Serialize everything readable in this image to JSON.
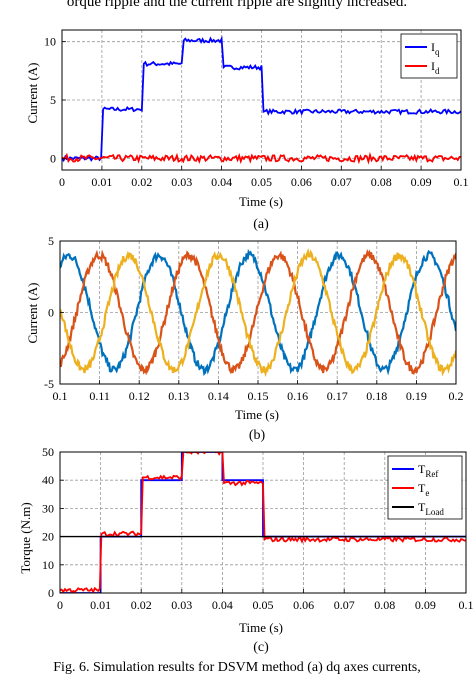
{
  "page_text": {
    "top": "orque ripple and the current ripple are slightly increased.",
    "caption": "Fig. 6.   Simulation results for DSVM method (a) dq axes currents,"
  },
  "chart_data": [
    {
      "type": "line",
      "panel_label": "(a)",
      "xlabel": "Time (s)",
      "ylabel": "Current (A)",
      "xlim": [
        0,
        0.1
      ],
      "ylim": [
        -1,
        11
      ],
      "xticks": [
        "0",
        "0.01",
        "0.02",
        "0.03",
        "0.04",
        "0.05",
        "0.06",
        "0.07",
        "0.08",
        "0.09",
        "0.1"
      ],
      "yticks": [
        "0",
        "5",
        "10"
      ],
      "grid": true,
      "legend": {
        "placement": "top-right",
        "entries": [
          "I_q",
          "I_d"
        ]
      },
      "series": [
        {
          "name": "I_q",
          "color": "#0000ff",
          "x": [
            0,
            0.0098,
            0.0103,
            0.02,
            0.0205,
            0.03,
            0.0305,
            0.04,
            0.0405,
            0.05,
            0.0505,
            0.1
          ],
          "values": [
            0,
            0,
            4.2,
            4.2,
            8.1,
            8.1,
            10.1,
            10.1,
            7.8,
            7.8,
            4.0,
            4.0
          ]
        },
        {
          "name": "I_d",
          "color": "#ff0000",
          "x": [
            0,
            0.1
          ],
          "values": [
            0,
            0
          ]
        }
      ]
    },
    {
      "type": "line",
      "panel_label": "(b)",
      "xlabel": "Time (s)",
      "ylabel": "Current (A)",
      "xlim": [
        0.1,
        0.2
      ],
      "ylim": [
        -5,
        5
      ],
      "xticks": [
        "0.1",
        "0.11",
        "0.12",
        "0.13",
        "0.14",
        "0.15",
        "0.16",
        "0.17",
        "0.18",
        "0.19",
        "0.2"
      ],
      "yticks": [
        "-5",
        "0",
        "5"
      ],
      "grid": true,
      "series": [
        {
          "color": "#0072bd",
          "amplitude": 4,
          "frequency_hz": 44,
          "phase_deg": -90
        },
        {
          "color": "#d95319",
          "amplitude": 4,
          "frequency_hz": 44,
          "phase_deg": 150
        },
        {
          "color": "#edb120",
          "amplitude": 4,
          "frequency_hz": 44,
          "phase_deg": 30
        }
      ]
    },
    {
      "type": "line",
      "panel_label": "(c)",
      "xlabel": "Time (s)",
      "ylabel": "Torque (N.m)",
      "xlim": [
        0,
        0.1
      ],
      "ylim": [
        0,
        50
      ],
      "xticks": [
        "0",
        "0.01",
        "0.02",
        "0.03",
        "0.04",
        "0.05",
        "0.06",
        "0.07",
        "0.08",
        "0.09",
        "0.1"
      ],
      "yticks": [
        "0",
        "10",
        "20",
        "30",
        "40",
        "50"
      ],
      "grid": true,
      "legend": {
        "placement": "top-right",
        "entries": [
          "T_Ref",
          "T_e",
          "T_Load"
        ]
      },
      "series": [
        {
          "name": "T_Ref",
          "color": "#0000ff",
          "x": [
            0,
            0.01,
            0.01,
            0.02,
            0.02,
            0.03,
            0.03,
            0.04,
            0.04,
            0.05,
            0.05,
            0.1
          ],
          "values": [
            0,
            0,
            20,
            20,
            40,
            40,
            50,
            50,
            40,
            40,
            20,
            20
          ]
        },
        {
          "name": "T_e",
          "color": "#ff0000",
          "x": [
            0,
            0.0098,
            0.0102,
            0.02,
            0.0204,
            0.03,
            0.0304,
            0.04,
            0.0404,
            0.05,
            0.0504,
            0.1
          ],
          "values": [
            1,
            1,
            21,
            21,
            41,
            41,
            50,
            50,
            39,
            39,
            19,
            19
          ]
        },
        {
          "name": "T_Load",
          "color": "#000000",
          "x": [
            0,
            0.1
          ],
          "values": [
            20,
            20
          ]
        }
      ]
    }
  ]
}
